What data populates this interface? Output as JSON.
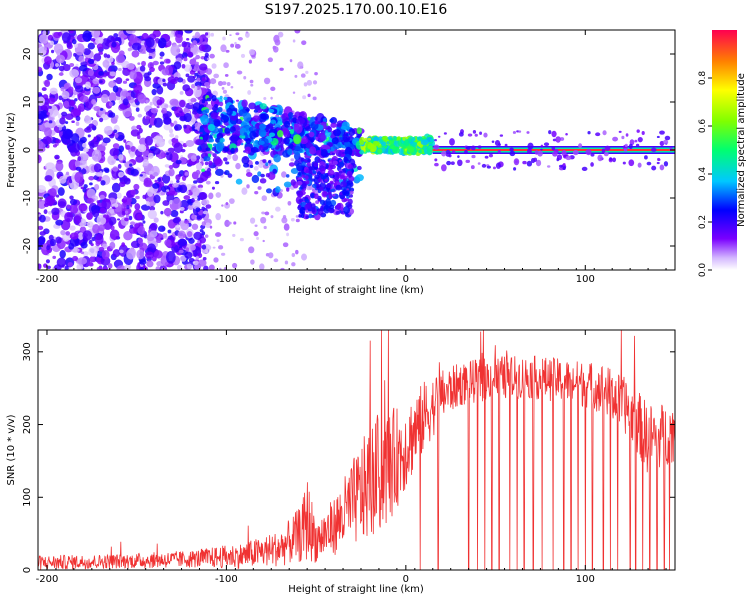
{
  "title": "S197.2025.170.00.10.E16",
  "chart_data": [
    {
      "type": "heatmap",
      "xlabel": "Height of straight line (km)",
      "ylabel": "Frequency (Hz)",
      "xlim": [
        -205,
        150
      ],
      "ylim": [
        -25,
        25
      ],
      "xticks": [
        -200,
        -100,
        0,
        100
      ],
      "yticks": [
        -20,
        -10,
        0,
        10,
        20
      ],
      "colorbar": {
        "label": "Normalized spectral amplitude",
        "range": [
          0,
          1
        ],
        "ticks": [
          0.0,
          0.2,
          0.4,
          0.6,
          0.8
        ]
      },
      "features": [
        {
          "x_range": [
            -205,
            -115
          ],
          "freq_spread": 25,
          "amplitude": 0.15,
          "density": "high"
        },
        {
          "x_range": [
            -115,
            -25
          ],
          "freq_center_trend": [
            6,
            2
          ],
          "freq_spread": 10,
          "amplitude": 0.35
        },
        {
          "x_range": [
            -25,
            15
          ],
          "freq_center": 1,
          "freq_spread": 3,
          "amplitude": 0.7
        },
        {
          "x_range": [
            15,
            150
          ],
          "freq_center": 0,
          "freq_spread": 1,
          "amplitude": 0.95
        }
      ]
    },
    {
      "type": "line",
      "xlabel": "Height of straight line (km)",
      "ylabel": "SNR (10 * v/v)",
      "xlim": [
        -205,
        150
      ],
      "ylim": [
        0,
        330
      ],
      "xticks": [
        -200,
        -100,
        0,
        100
      ],
      "yticks": [
        0,
        100,
        200,
        300
      ],
      "color": "#f03232",
      "envelope": {
        "x": [
          -205,
          -160,
          -120,
          -90,
          -70,
          -58,
          -55,
          -50,
          -40,
          -30,
          -20,
          -10,
          0,
          10,
          20,
          30,
          50,
          70,
          90,
          110,
          125,
          135,
          150
        ],
        "base": [
          10,
          12,
          15,
          20,
          30,
          50,
          70,
          40,
          60,
          90,
          120,
          140,
          170,
          210,
          240,
          255,
          265,
          265,
          260,
          250,
          220,
          180,
          190
        ],
        "amp": [
          10,
          10,
          12,
          18,
          25,
          40,
          60,
          30,
          40,
          60,
          80,
          80,
          60,
          50,
          35,
          30,
          30,
          30,
          30,
          35,
          40,
          50,
          40
        ]
      },
      "dropouts_x": [
        8,
        18,
        35,
        40,
        44,
        48,
        52,
        58,
        62,
        66,
        71,
        76,
        82,
        88,
        92,
        96,
        100,
        104,
        110,
        114,
        118,
        125,
        128,
        132,
        136,
        140,
        144,
        147
      ]
    }
  ]
}
